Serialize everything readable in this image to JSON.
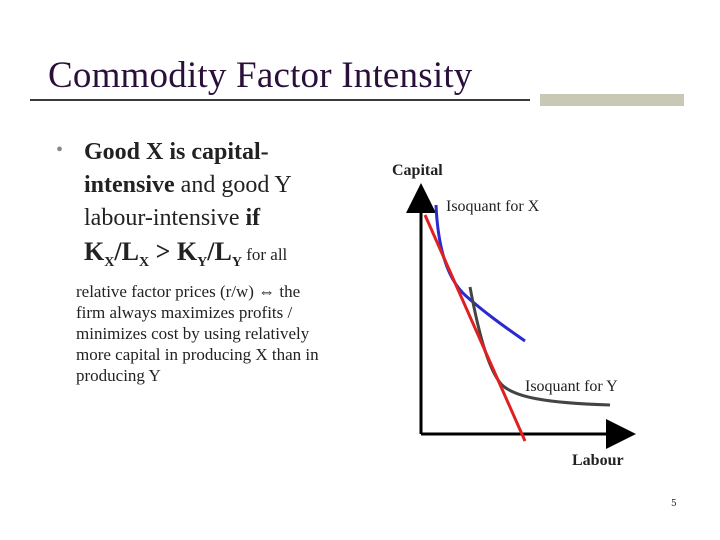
{
  "slide": {
    "title": "Commodity Factor Intensity",
    "page_number": "5"
  },
  "bullet": {
    "marker": "•",
    "line1": "Good X is capital-",
    "line2_bold": "intensive",
    "line2_rest": " and good Y",
    "line3_plain": "labour-intensive ",
    "line3_bold": "if",
    "ratio": {
      "kx": "K",
      "kx_sub": "X",
      "slash1": "/L",
      "lx_sub": "X",
      "gt": " > ",
      "ky": "K",
      "ky_sub": "Y",
      "slash2": "/L",
      "ly_sub": "Y"
    },
    "ratio_tail": " for all",
    "small_lines": [
      "relative factor prices (r/w) ⇔ the",
      "firm always maximizes profits /",
      "minimizes cost by using relatively",
      "more capital in producing X than in",
      "producing Y"
    ]
  },
  "diagram": {
    "y_axis_label": "Capital",
    "x_axis_label": "Labour",
    "isoquant_x_label": "Isoquant for X",
    "isoquant_y_label": "Isoquant for Y",
    "colors": {
      "axis": "#000000",
      "isoquant_x": "#2a2ad0",
      "isoquant_y": "#444444",
      "price_line": "#e02020"
    }
  }
}
